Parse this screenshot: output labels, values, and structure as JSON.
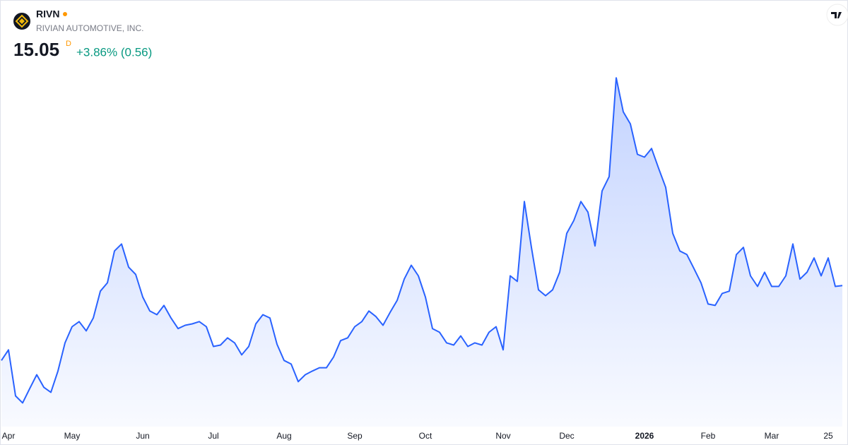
{
  "chart_data": {
    "type": "area",
    "symbol": "RIVN",
    "company": "RIVIAN AUTOMOTIVE, INC.",
    "price": "15.05",
    "interval": "D",
    "change": "+3.86% (0.56)",
    "categories": [
      null,
      "Apr",
      null,
      null,
      null,
      null,
      null,
      null,
      null,
      null,
      "May",
      null,
      null,
      null,
      null,
      null,
      null,
      null,
      null,
      null,
      "Jun",
      null,
      null,
      null,
      null,
      null,
      null,
      null,
      null,
      null,
      "Jul",
      null,
      null,
      null,
      null,
      null,
      null,
      null,
      null,
      null,
      "Aug",
      null,
      null,
      null,
      null,
      null,
      null,
      null,
      null,
      null,
      "Sep",
      null,
      null,
      null,
      null,
      null,
      null,
      null,
      null,
      null,
      "Oct",
      null,
      null,
      null,
      null,
      null,
      null,
      null,
      null,
      null,
      null,
      "Nov",
      null,
      null,
      null,
      null,
      null,
      null,
      null,
      null,
      "Dec",
      null,
      null,
      null,
      null,
      null,
      null,
      null,
      null,
      null,
      null,
      "2026",
      null,
      null,
      null,
      null,
      null,
      null,
      null,
      null,
      "Feb",
      null,
      null,
      null,
      null,
      null,
      null,
      null,
      null,
      "Mar",
      null,
      null,
      null,
      null,
      null,
      null,
      null,
      "25",
      null,
      null
    ],
    "series": [
      {
        "name": "RIVN",
        "color": "#2962ff",
        "values": [
          12.37,
          12.75,
          11.1,
          10.85,
          11.36,
          11.86,
          11.41,
          11.23,
          11.99,
          13.0,
          13.58,
          13.76,
          13.43,
          13.89,
          14.85,
          15.15,
          16.29,
          16.54,
          15.71,
          15.45,
          14.64,
          14.14,
          14.01,
          14.34,
          13.89,
          13.51,
          13.63,
          13.68,
          13.76,
          13.58,
          12.87,
          12.92,
          13.18,
          13.0,
          12.57,
          12.87,
          13.68,
          14.01,
          13.89,
          12.95,
          12.37,
          12.24,
          11.61,
          11.86,
          11.99,
          12.11,
          12.11,
          12.49,
          13.08,
          13.18,
          13.58,
          13.76,
          14.14,
          13.94,
          13.63,
          14.09,
          14.52,
          15.28,
          15.78,
          15.4,
          14.64,
          13.51,
          13.38,
          13.0,
          12.92,
          13.25,
          12.87,
          13.0,
          12.92,
          13.38,
          13.58,
          12.75,
          15.4,
          15.2,
          18.06,
          16.42,
          14.9,
          14.69,
          14.9,
          15.53,
          16.92,
          17.38,
          18.06,
          17.68,
          16.47,
          18.44,
          18.95,
          22.49,
          21.27,
          20.84,
          19.75,
          19.65,
          19.96,
          19.25,
          18.57,
          16.92,
          16.29,
          16.16,
          15.66,
          15.15,
          14.39,
          14.34,
          14.77,
          14.85,
          16.16,
          16.42,
          15.4,
          15.02,
          15.53,
          15.02,
          15.02,
          15.4,
          16.54,
          15.28,
          15.53,
          16.04,
          15.4,
          16.04,
          15.02,
          15.05
        ]
      }
    ],
    "ylim": [
      10,
      23
    ],
    "bold_categories": [
      "2026"
    ]
  }
}
